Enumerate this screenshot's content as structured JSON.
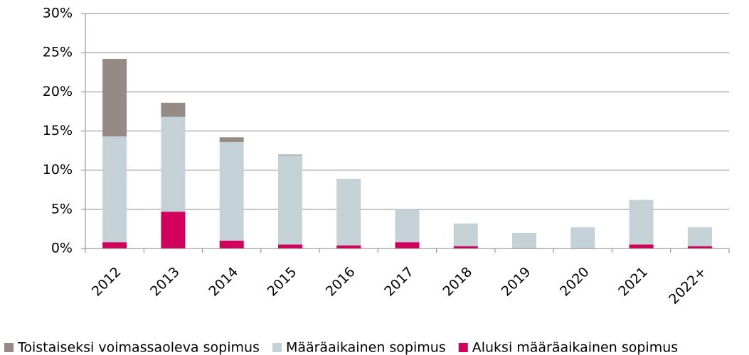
{
  "chart_data": {
    "type": "stacked_bar",
    "categories": [
      "2012",
      "2013",
      "2014",
      "2015",
      "2016",
      "2017",
      "2018",
      "2019",
      "2020",
      "2021",
      "2022+"
    ],
    "series": [
      {
        "name": "Aluksi määräaikainen sopimus",
        "color": "#d1005d",
        "values": [
          0.8,
          4.7,
          1.0,
          0.5,
          0.4,
          0.8,
          0.3,
          0,
          0,
          0.5,
          0.3
        ]
      },
      {
        "name": "Määräaikainen sopimus",
        "color": "#c4d2d8",
        "values": [
          13.5,
          12.1,
          12.6,
          11.4,
          8.5,
          4.2,
          2.9,
          2.0,
          2.7,
          5.7,
          2.4
        ]
      },
      {
        "name": "Toistaiseksi voimassaoleva sopimus",
        "color": "#958a84",
        "values": [
          9.9,
          1.8,
          0.6,
          0.1,
          0,
          0,
          0,
          0,
          0,
          0,
          0
        ]
      }
    ],
    "ylim": [
      0,
      30
    ],
    "yticks": [
      {
        "value": 0,
        "label": "0%"
      },
      {
        "value": 5,
        "label": "5%"
      },
      {
        "value": 10,
        "label": "10%"
      },
      {
        "value": 15,
        "label": "15%"
      },
      {
        "value": 20,
        "label": "20%"
      },
      {
        "value": 25,
        "label": "25%"
      },
      {
        "value": 30,
        "label": "30%"
      }
    ],
    "grid": true,
    "legend": "bottom"
  }
}
